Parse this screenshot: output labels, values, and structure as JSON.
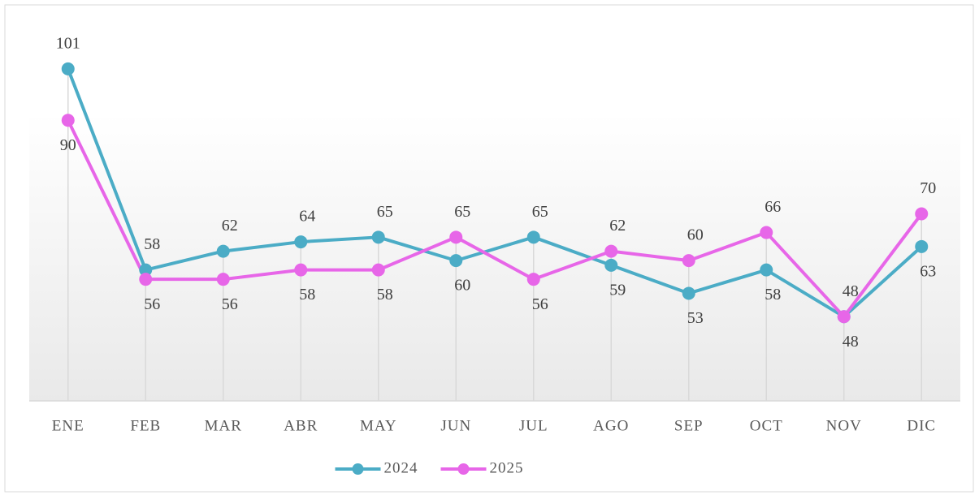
{
  "chart_data": {
    "type": "line",
    "categories": [
      "ENE",
      "FEB",
      "MAR",
      "ABR",
      "MAY",
      "JUN",
      "JUL",
      "AGO",
      "SEP",
      "OCT",
      "NOV",
      "DIC"
    ],
    "series": [
      {
        "name": "2024",
        "color": "#4bacc6",
        "values": [
          101,
          58,
          62,
          64,
          65,
          60,
          65,
          59,
          53,
          58,
          48,
          63
        ]
      },
      {
        "name": "2025",
        "color": "#e766e8",
        "values": [
          90,
          56,
          56,
          58,
          58,
          65,
          56,
          62,
          60,
          66,
          48,
          70
        ]
      }
    ],
    "ylim": [
      30,
      110
    ],
    "legend": "bottom"
  }
}
